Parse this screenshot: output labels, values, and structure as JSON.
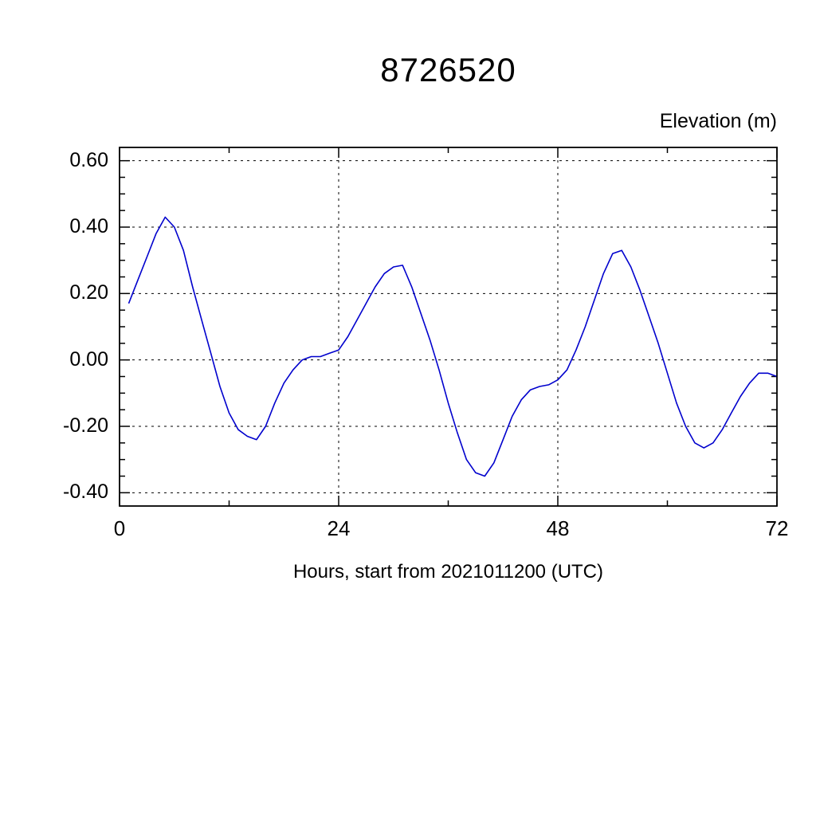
{
  "chart_data": {
    "type": "line",
    "title": "8726520",
    "ylabel": "Elevation (m)",
    "xlabel": "Hours, start from 2021011200 (UTC)",
    "xlim": [
      0,
      72
    ],
    "ylim": [
      -0.44,
      0.64
    ],
    "xticks": [
      0,
      24,
      48,
      72
    ],
    "xtick_labels": [
      "0",
      "24",
      "48",
      "72"
    ],
    "yticks": [
      0.6,
      0.4,
      0.2,
      0.0,
      -0.2,
      -0.4
    ],
    "ytick_labels": [
      "0.60",
      "0.40",
      "0.20",
      "0.00",
      "-0.20",
      "-0.40"
    ],
    "x_minor_ticks": [
      12,
      36,
      60
    ],
    "y_minor_step": 0.05,
    "grid": true,
    "grid_style": "dashed",
    "legend": "none",
    "line_color": "#0000cd",
    "frame_color": "#000000",
    "series": [
      {
        "name": "elevation",
        "x": [
          1,
          2,
          3,
          4,
          5,
          6,
          7,
          8,
          9,
          10,
          11,
          12,
          13,
          14,
          15,
          16,
          17,
          18,
          19,
          20,
          21,
          22,
          23,
          24,
          25,
          26,
          27,
          28,
          29,
          30,
          31,
          32,
          33,
          34,
          35,
          36,
          37,
          38,
          39,
          40,
          41,
          42,
          43,
          44,
          45,
          46,
          47,
          48,
          49,
          50,
          51,
          52,
          53,
          54,
          55,
          56,
          57,
          58,
          59,
          60,
          61,
          62,
          63,
          64,
          65,
          66,
          67,
          68,
          69,
          70,
          71,
          72
        ],
        "y": [
          0.17,
          0.24,
          0.31,
          0.38,
          0.43,
          0.4,
          0.33,
          0.22,
          0.12,
          0.02,
          -0.08,
          -0.16,
          -0.21,
          -0.23,
          -0.24,
          -0.2,
          -0.13,
          -0.07,
          -0.03,
          0.0,
          0.01,
          0.01,
          0.02,
          0.03,
          0.07,
          0.12,
          0.17,
          0.22,
          0.26,
          0.28,
          0.285,
          0.22,
          0.14,
          0.06,
          -0.03,
          -0.13,
          -0.22,
          -0.3,
          -0.34,
          -0.35,
          -0.31,
          -0.24,
          -0.17,
          -0.12,
          -0.09,
          -0.08,
          -0.075,
          -0.06,
          -0.03,
          0.03,
          0.1,
          0.18,
          0.26,
          0.32,
          0.33,
          0.28,
          0.21,
          0.13,
          0.05,
          -0.04,
          -0.13,
          -0.2,
          -0.25,
          -0.265,
          -0.25,
          -0.21,
          -0.16,
          -0.11,
          -0.07,
          -0.04,
          -0.04,
          -0.05
        ]
      }
    ]
  }
}
